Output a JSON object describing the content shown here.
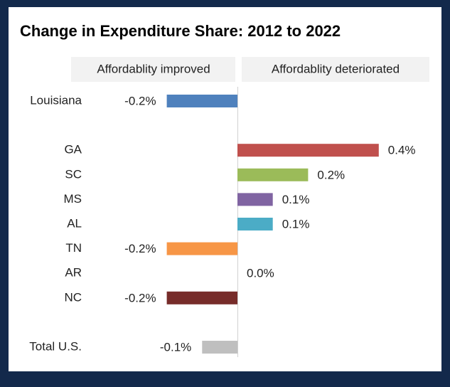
{
  "chart_data": {
    "type": "bar",
    "orientation": "horizontal",
    "title": "Change in Expenditure Share: 2012 to 2022",
    "annotations": [
      "Affordablity improved",
      "Affordablity deteriorated"
    ],
    "categories": [
      "Louisiana",
      null,
      "GA",
      "SC",
      "MS",
      "AL",
      "TN",
      "AR",
      "NC",
      null,
      "Total U.S."
    ],
    "values": [
      -0.2,
      null,
      0.4,
      0.2,
      0.1,
      0.1,
      -0.2,
      0.0,
      -0.2,
      null,
      -0.1
    ],
    "value_labels": [
      "-0.2%",
      null,
      "0.4%",
      "0.2%",
      "0.1%",
      "0.1%",
      "-0.2%",
      "0.0%",
      "-0.2%",
      null,
      "-0.1%"
    ],
    "colors": [
      "#4f81bd",
      null,
      "#c0504d",
      "#9bbb59",
      "#8064a2",
      "#4bacc6",
      "#f79646",
      "#4bacc6",
      "#772c2a",
      null,
      "#bfbfbf"
    ]
  }
}
